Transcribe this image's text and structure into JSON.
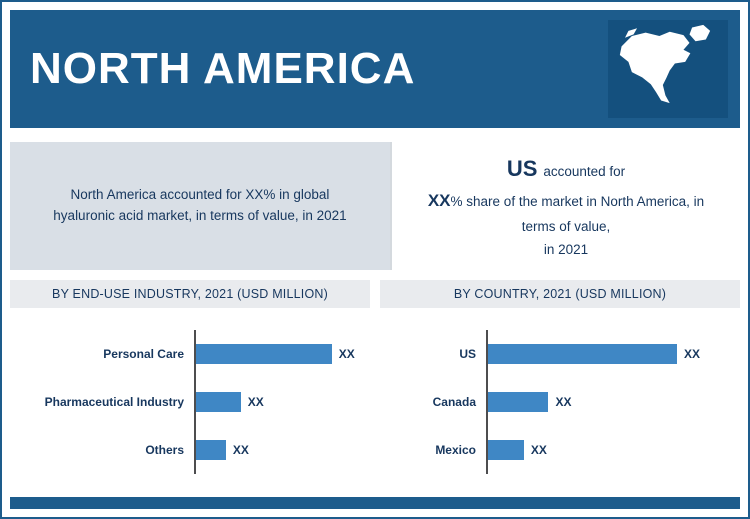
{
  "colors": {
    "header_bg": "#1d5c8c",
    "map_panel_bg": "#14507e",
    "summary_left_bg": "#d9dfe6",
    "section_header_bg": "#e9ebee",
    "bar_color": "#3f87c5",
    "text_navy": "#17375e"
  },
  "header": {
    "title": "NORTH AMERICA",
    "map_icon": "north-america-map-icon"
  },
  "summary_left": {
    "text": "North America accounted for XX% in global hyaluronic acid market, in terms of value, in 2021"
  },
  "summary_right": {
    "country": "US",
    "line1_rest": "accounted for",
    "value": "XX",
    "line2_rest": "% share of the market in North America, in terms of value,",
    "line3": "in 2021"
  },
  "section_headers": {
    "left": "BY END-USE INDUSTRY, 2021 (USD MILLION)",
    "right": "BY COUNTRY, 2021 (USD MILLION)"
  },
  "chart_data": [
    {
      "type": "bar",
      "orientation": "horizontal",
      "title": "BY END-USE INDUSTRY, 2021 (USD MILLION)",
      "categories": [
        "Personal Care",
        "Pharmaceutical Industry",
        "Others"
      ],
      "value_labels": [
        "XX",
        "XX",
        "XX"
      ],
      "values_relative": [
        100,
        33,
        22
      ],
      "max_bar_pct": 78,
      "bar_color": "#3f87c5",
      "xlabel": "",
      "ylabel": "",
      "grid": false,
      "legend": false,
      "note": "values masked as XX in source; values_relative estimated from bar pixel lengths, longest bar = 100"
    },
    {
      "type": "bar",
      "orientation": "horizontal",
      "title": "BY COUNTRY, 2021 (USD MILLION)",
      "categories": [
        "US",
        "Canada",
        "Mexico"
      ],
      "value_labels": [
        "XX",
        "XX",
        "XX"
      ],
      "values_relative": [
        100,
        32,
        19
      ],
      "max_bar_pct": 75,
      "bar_color": "#3f87c5",
      "xlabel": "",
      "ylabel": "",
      "grid": false,
      "legend": false,
      "note": "values masked as XX in source; values_relative estimated from bar pixel lengths, longest bar = 100"
    }
  ]
}
